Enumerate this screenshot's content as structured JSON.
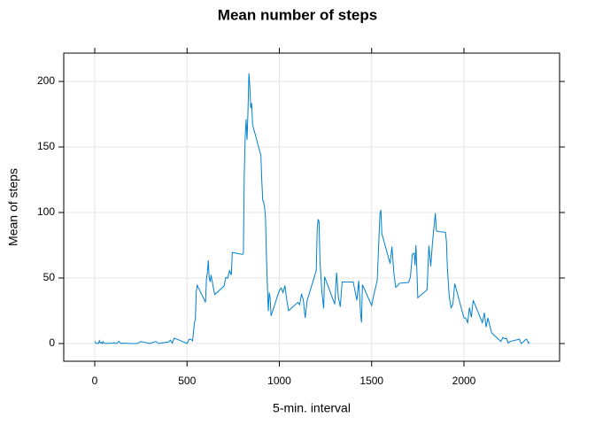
{
  "chart_data": {
    "type": "line",
    "title": "Mean number of steps",
    "xlabel": "5-min. interval",
    "ylabel": "Mean of steps",
    "x": [
      0,
      5,
      10,
      15,
      20,
      25,
      30,
      35,
      40,
      45,
      50,
      55,
      100,
      105,
      110,
      120,
      130,
      140,
      150,
      200,
      230,
      250,
      300,
      330,
      345,
      400,
      410,
      420,
      430,
      440,
      450,
      500,
      510,
      520,
      530,
      540,
      545,
      550,
      555,
      600,
      605,
      610,
      615,
      620,
      625,
      630,
      640,
      650,
      700,
      710,
      720,
      730,
      740,
      745,
      800,
      805,
      810,
      815,
      820,
      825,
      830,
      835,
      840,
      845,
      850,
      855,
      900,
      905,
      910,
      915,
      920,
      925,
      930,
      935,
      940,
      945,
      950,
      955,
      1000,
      1010,
      1020,
      1030,
      1040,
      1050,
      1100,
      1110,
      1120,
      1130,
      1140,
      1150,
      1200,
      1205,
      1210,
      1215,
      1220,
      1230,
      1240,
      1245,
      1300,
      1310,
      1320,
      1330,
      1340,
      1400,
      1410,
      1420,
      1430,
      1440,
      1445,
      1450,
      1500,
      1510,
      1530,
      1545,
      1550,
      1555,
      1600,
      1610,
      1620,
      1630,
      1640,
      1650,
      1700,
      1710,
      1720,
      1730,
      1735,
      1740,
      1750,
      1800,
      1810,
      1820,
      1830,
      1845,
      1850,
      1855,
      1900,
      1905,
      1910,
      1920,
      1930,
      1940,
      1950,
      2000,
      2010,
      2020,
      2030,
      2040,
      2050,
      2100,
      2110,
      2120,
      2130,
      2140,
      2150,
      2200,
      2210,
      2220,
      2230,
      2240,
      2250,
      2300,
      2310,
      2320,
      2330,
      2340,
      2350,
      2355
    ],
    "values": [
      1.7,
      0.3,
      0.1,
      0.2,
      0.1,
      2.1,
      0.5,
      0.9,
      0,
      1.5,
      0.3,
      0.1,
      0.3,
      0.7,
      0.2,
      0,
      1.8,
      0.2,
      0.3,
      0,
      0,
      1.5,
      0,
      1.6,
      0.1,
      1.2,
      2.6,
      0.3,
      4.1,
      3.5,
      3.1,
      0,
      3.0,
      3.3,
      2.1,
      16,
      18.3,
      39.5,
      44.5,
      31.5,
      49.3,
      53.8,
      63.5,
      50,
      47.1,
      52.2,
      44.5,
      37.4,
      43.8,
      50.5,
      49.9,
      55.7,
      52.3,
      69.5,
      68,
      68.7,
      129.4,
      157.5,
      171.2,
      155.4,
      177.3,
      206.2,
      195.9,
      179.6,
      183.4,
      167,
      143.5,
      124,
      109.1,
      108.1,
      103.7,
      96,
      66.2,
      45.2,
      24.8,
      38.8,
      35,
      21.1,
      40.6,
      42.4,
      38.9,
      44.3,
      33.6,
      25.1,
      31.4,
      29.7,
      37.9,
      33.1,
      19.6,
      32.5,
      55.7,
      87.4,
      94.8,
      92.8,
      63.4,
      40,
      26.9,
      51,
      30,
      54,
      35,
      28,
      47,
      47,
      40,
      33,
      48,
      22.6,
      16,
      45,
      29,
      36,
      48,
      98.7,
      102.1,
      84,
      61,
      74,
      54,
      43,
      44,
      46,
      46.6,
      50.7,
      68,
      69,
      59.7,
      75.1,
      35,
      41,
      74.7,
      59,
      77.8,
      99.5,
      86.6,
      85.6,
      84.9,
      77.8,
      58,
      36,
      27.4,
      30,
      45.7,
      19.6,
      19.3,
      16,
      27.5,
      20,
      33,
      15.9,
      23.5,
      12.6,
      19.6,
      13.5,
      8.1,
      1.6,
      4.6,
      3.7,
      4.1,
      0.3,
      1.6,
      3.3,
      0,
      1,
      2.6,
      3.3,
      0.2,
      1.1
    ],
    "color": "#0080d0",
    "xlim": [
      -168,
      2518
    ],
    "ylim": [
      -13.5,
      221.6
    ],
    "xticks": [
      0,
      500,
      1000,
      1500,
      2000
    ],
    "yticks": [
      0,
      50,
      100,
      150,
      200
    ],
    "grid": true
  }
}
